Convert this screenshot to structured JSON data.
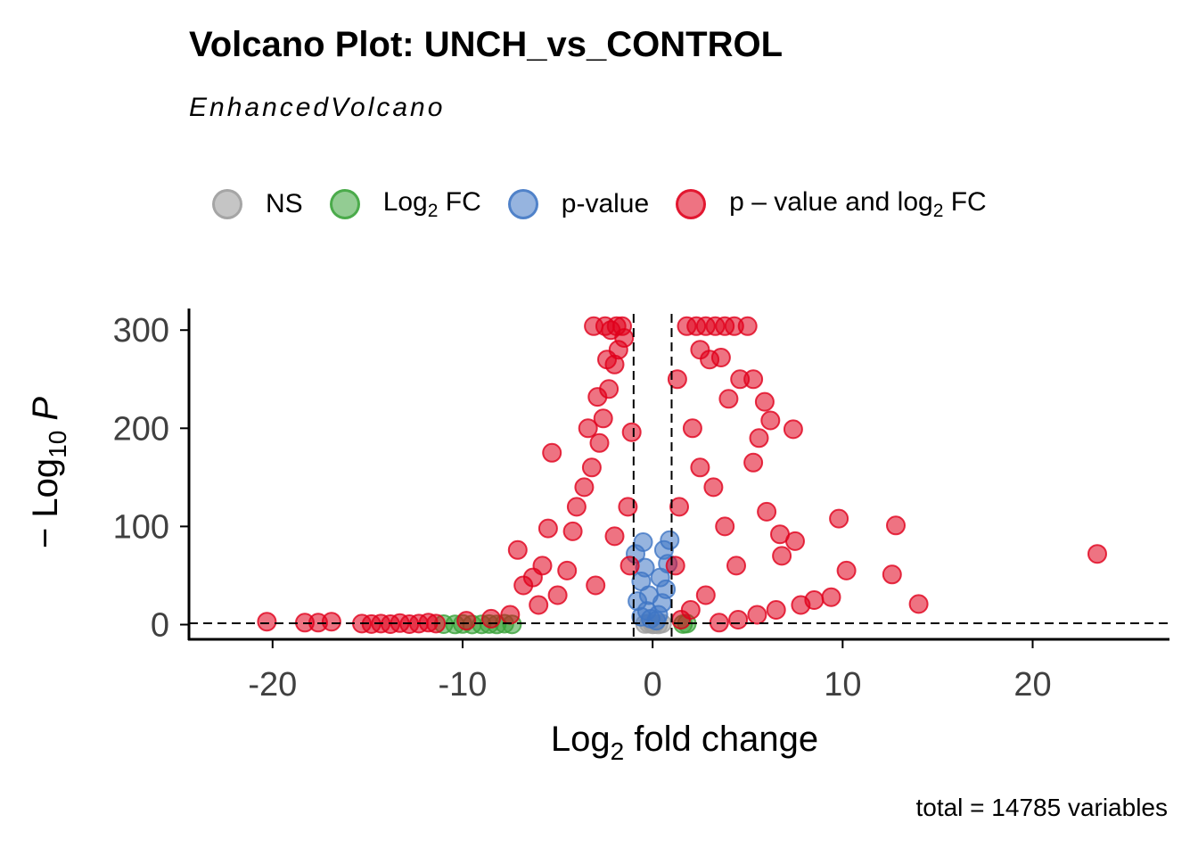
{
  "chart_data": {
    "type": "scatter",
    "title": "Volcano Plot: UNCH_vs_CONTROL",
    "subtitle": "EnhancedVolcano",
    "xlabel": "Log2 fold change",
    "ylabel": "-Log10 P",
    "caption": "total = 14785 variables",
    "xlim": [
      -24.4,
      27.2
    ],
    "ylim": [
      -15,
      322
    ],
    "xticks": [
      -20,
      -10,
      0,
      10,
      20
    ],
    "xtick_labels": [
      "-20",
      "-10",
      "0",
      "10",
      "20"
    ],
    "yticks": [
      0,
      100,
      200,
      300
    ],
    "ytick_labels": [
      "0",
      "100",
      "200",
      "300"
    ],
    "cutoffs": {
      "log2fc": [
        -1,
        1
      ],
      "neg_log10_p": 1.3
    },
    "grid": false,
    "legend_position": "top",
    "legend": [
      {
        "label": "NS",
        "color": "#9e9e9e"
      },
      {
        "label": "Log2 FC",
        "color": "#3aa23a"
      },
      {
        "label": "p-value",
        "color": "#3f76c4"
      },
      {
        "label": "p – value and log2 FC",
        "color": "#e0001b"
      }
    ],
    "series": [
      {
        "name": "NS",
        "color": "#9e9e9e",
        "points": [
          [
            0,
            0.3
          ],
          [
            -0.4,
            0.6
          ],
          [
            0.3,
            0.2
          ],
          [
            0.5,
            1.0
          ],
          [
            -0.2,
            0.9
          ],
          [
            0.1,
            0.5
          ]
        ]
      },
      {
        "name": "Log2 FC",
        "color": "#3aa23a",
        "points": [
          [
            -11,
            0.4
          ],
          [
            -10.4,
            0.2
          ],
          [
            -10,
            0.6
          ],
          [
            -9.5,
            0.1
          ],
          [
            -9,
            0.3
          ],
          [
            -8.6,
            0.5
          ],
          [
            -8.2,
            0.2
          ],
          [
            -7.8,
            0.9
          ],
          [
            -7.4,
            0.3
          ],
          [
            1.6,
            0.5
          ],
          [
            1.8,
            1.0
          ]
        ]
      },
      {
        "name": "p-value",
        "color": "#3f76c4",
        "points": [
          [
            -0.6,
            8
          ],
          [
            -0.3,
            14
          ],
          [
            -0.8,
            24
          ],
          [
            -0.2,
            30
          ],
          [
            -0.6,
            44
          ],
          [
            -0.4,
            58
          ],
          [
            -0.9,
            72
          ],
          [
            -0.5,
            84
          ],
          [
            0.3,
            10
          ],
          [
            0.5,
            22
          ],
          [
            0.7,
            36
          ],
          [
            0.4,
            48
          ],
          [
            0.8,
            62
          ],
          [
            0.6,
            76
          ],
          [
            0.9,
            86
          ],
          [
            0.2,
            4
          ],
          [
            -0.1,
            6
          ]
        ]
      },
      {
        "name": "p – value and log2 FC",
        "color": "#e0001b",
        "points": [
          [
            -20.3,
            3
          ],
          [
            -18.3,
            2
          ],
          [
            -17.6,
            2
          ],
          [
            -16.9,
            3
          ],
          [
            -15.3,
            1
          ],
          [
            -14.8,
            0.5
          ],
          [
            -14.3,
            1
          ],
          [
            -13.8,
            0.4
          ],
          [
            -13.3,
            1.5
          ],
          [
            -12.8,
            0.4
          ],
          [
            -12.3,
            1
          ],
          [
            -11.8,
            2
          ],
          [
            -11.4,
            1
          ],
          [
            -5.3,
            175
          ],
          [
            -5.5,
            98
          ],
          [
            -7.1,
            76
          ],
          [
            -6.3,
            48
          ],
          [
            -6.8,
            40
          ],
          [
            -5.8,
            60
          ],
          [
            -4.5,
            55
          ],
          [
            -4.0,
            120
          ],
          [
            -3.6,
            140
          ],
          [
            -3.2,
            160
          ],
          [
            -2.8,
            185
          ],
          [
            -2.6,
            210
          ],
          [
            -2.3,
            240
          ],
          [
            -2.0,
            265
          ],
          [
            -1.8,
            280
          ],
          [
            -2.2,
            300
          ],
          [
            -1.6,
            304
          ],
          [
            -1.9,
            304
          ],
          [
            -2.5,
            304
          ],
          [
            -3.1,
            304
          ],
          [
            -1.5,
            292
          ],
          [
            -2.4,
            270
          ],
          [
            -2.9,
            232
          ],
          [
            -3.4,
            200
          ],
          [
            -4.2,
            95
          ],
          [
            -5.0,
            30
          ],
          [
            -6.0,
            20
          ],
          [
            -7.5,
            10
          ],
          [
            -8.5,
            6
          ],
          [
            -9.8,
            4
          ],
          [
            -3.0,
            40
          ],
          [
            -2.0,
            90
          ],
          [
            -1.3,
            120
          ],
          [
            -1.1,
            196
          ],
          [
            -1.2,
            60
          ],
          [
            1.3,
            250
          ],
          [
            1.4,
            120
          ],
          [
            1.2,
            60
          ],
          [
            1.8,
            304
          ],
          [
            2.3,
            304
          ],
          [
            2.8,
            304
          ],
          [
            3.3,
            304
          ],
          [
            3.8,
            304
          ],
          [
            4.3,
            304
          ],
          [
            5.0,
            304
          ],
          [
            2.5,
            280
          ],
          [
            3.0,
            270
          ],
          [
            3.6,
            272
          ],
          [
            4.6,
            250
          ],
          [
            5.3,
            250
          ],
          [
            4.0,
            230
          ],
          [
            5.9,
            227
          ],
          [
            6.2,
            208
          ],
          [
            7.4,
            199
          ],
          [
            5.6,
            190
          ],
          [
            6.0,
            115
          ],
          [
            5.3,
            165
          ],
          [
            6.7,
            92
          ],
          [
            7.5,
            85
          ],
          [
            6.8,
            70
          ],
          [
            9.8,
            108
          ],
          [
            12.8,
            101
          ],
          [
            23.4,
            72
          ],
          [
            10.2,
            55
          ],
          [
            12.6,
            51
          ],
          [
            14.0,
            21
          ],
          [
            9.4,
            28
          ],
          [
            8.5,
            25
          ],
          [
            7.8,
            20
          ],
          [
            6.5,
            15
          ],
          [
            5.5,
            10
          ],
          [
            4.5,
            5
          ],
          [
            3.5,
            2
          ],
          [
            2.5,
            160
          ],
          [
            2.1,
            200
          ],
          [
            3.2,
            140
          ],
          [
            3.8,
            100
          ],
          [
            4.4,
            60
          ],
          [
            2.8,
            30
          ],
          [
            2.0,
            15
          ],
          [
            1.5,
            5
          ]
        ]
      }
    ]
  }
}
